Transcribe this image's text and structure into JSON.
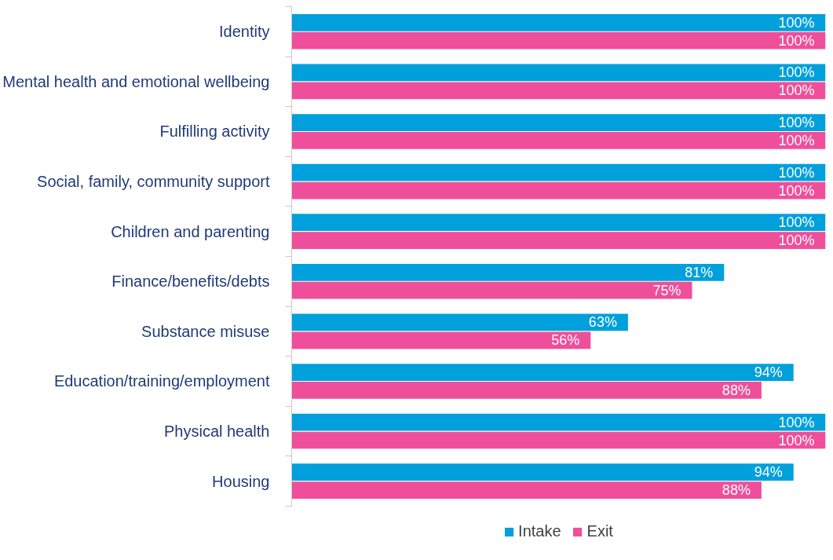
{
  "chart_data": {
    "type": "bar",
    "orientation": "horizontal",
    "categories": [
      "Identity",
      "Mental health and emotional wellbeing",
      "Fulfilling activity",
      "Social, family, community support",
      "Children and parenting",
      "Finance/benefits/debts",
      "Substance misuse",
      "Education/training/employment",
      "Physical health",
      "Housing"
    ],
    "series": [
      {
        "name": "Intake",
        "color": "#00a0dc",
        "values": [
          100,
          100,
          100,
          100,
          100,
          81,
          63,
          94,
          100,
          94
        ],
        "value_labels": [
          "100%",
          "100%",
          "100%",
          "100%",
          "100%",
          "81%",
          "63%",
          "94%",
          "100%",
          "94%"
        ]
      },
      {
        "name": "Exit",
        "color": "#ef4f9a",
        "values": [
          100,
          100,
          100,
          100,
          100,
          75,
          56,
          88,
          100,
          88
        ],
        "value_labels": [
          "100%",
          "100%",
          "100%",
          "100%",
          "100%",
          "75%",
          "56%",
          "88%",
          "100%",
          "88%"
        ]
      }
    ],
    "legend": "bottom",
    "tick_labels": "y"
  }
}
